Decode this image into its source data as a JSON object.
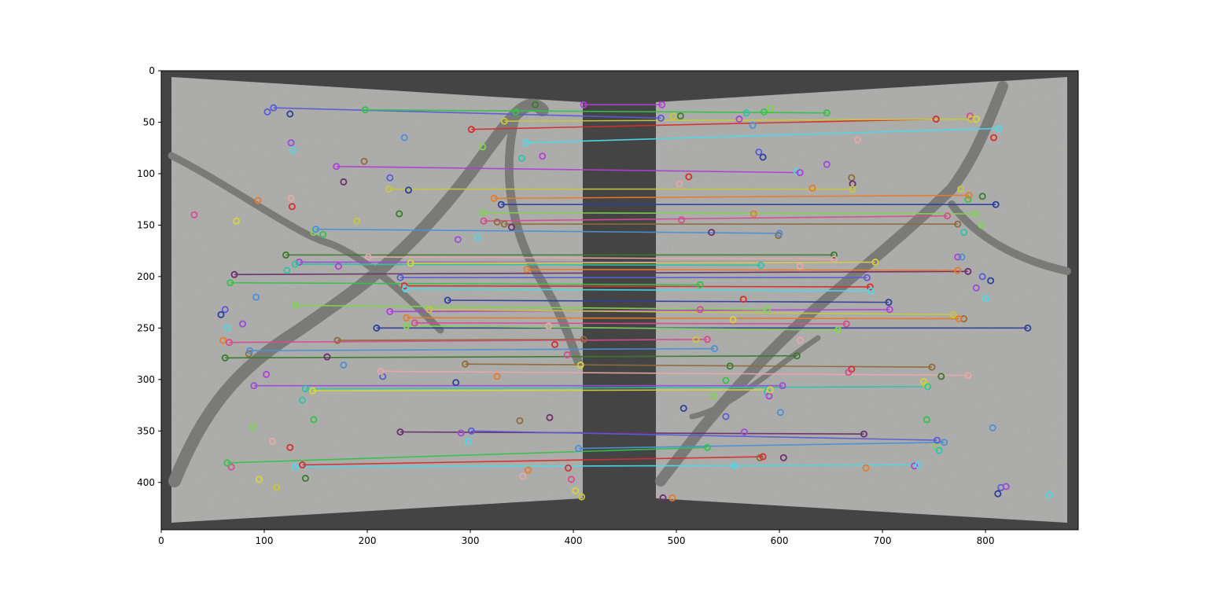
{
  "chart_data": {
    "type": "scatter",
    "title": "",
    "xlabel": "",
    "ylabel": "",
    "xlim": [
      0,
      890
    ],
    "ylim": [
      446,
      0
    ],
    "y_inverted": true,
    "grid": false,
    "xticks": [
      0,
      100,
      200,
      300,
      400,
      500,
      600,
      700,
      800
    ],
    "yticks": [
      0,
      50,
      100,
      150,
      200,
      250,
      300,
      350,
      400
    ],
    "colors": {
      "background": "#444444",
      "image_fill": "#b3b3b1",
      "crack": "#7a7a78"
    },
    "line_colors": [
      "#5b5bd6",
      "#34c34a",
      "#d62e2e",
      "#4dd9e8",
      "#b03fd6",
      "#c8c83a",
      "#e87a2e",
      "#2e3f9a",
      "#7fd64d",
      "#d64d8f",
      "#8f6b3a",
      "#4d8fd6",
      "#3a7a2e",
      "#e8a8a8",
      "#9a4dd6",
      "#2ec3a8",
      "#d6d63a",
      "#6b2e6b"
    ],
    "matches": [
      [
        109,
        36,
        485,
        46
      ],
      [
        198,
        38,
        646,
        41
      ],
      [
        301,
        57,
        752,
        47
      ],
      [
        354,
        70,
        813,
        56
      ],
      [
        170,
        93,
        620,
        99
      ],
      [
        221,
        115,
        671,
        115
      ],
      [
        323,
        124,
        784,
        121
      ],
      [
        330,
        130,
        810,
        130
      ],
      [
        312,
        138,
        790,
        139
      ],
      [
        313,
        146,
        763,
        141
      ],
      [
        333,
        149,
        773,
        149
      ],
      [
        150,
        154,
        600,
        158
      ],
      [
        121,
        179,
        653,
        179
      ],
      [
        201,
        181,
        653,
        183
      ],
      [
        134,
        186,
        693,
        186
      ],
      [
        130,
        188,
        582,
        189
      ],
      [
        242,
        187,
        693,
        186
      ],
      [
        71,
        198,
        783,
        195
      ],
      [
        232,
        201,
        685,
        201
      ],
      [
        67,
        206,
        523,
        208
      ],
      [
        236,
        209,
        688,
        210
      ],
      [
        237,
        212,
        689,
        214
      ],
      [
        222,
        234,
        707,
        232
      ],
      [
        260,
        232,
        769,
        237
      ],
      [
        238,
        240,
        774,
        241
      ],
      [
        209,
        250,
        841,
        250
      ],
      [
        238,
        248,
        657,
        252
      ],
      [
        66,
        264,
        530,
        261
      ],
      [
        171,
        262,
        410,
        261
      ],
      [
        86,
        272,
        537,
        270
      ],
      [
        62,
        279,
        617,
        277
      ],
      [
        213,
        292,
        783,
        296
      ],
      [
        90,
        306,
        603,
        306
      ],
      [
        140,
        309,
        744,
        307
      ],
      [
        147,
        311,
        591,
        310
      ],
      [
        232,
        351,
        682,
        353
      ],
      [
        301,
        350,
        753,
        359
      ],
      [
        64,
        381,
        530,
        366
      ],
      [
        137,
        383,
        584,
        375
      ],
      [
        130,
        385,
        735,
        383
      ],
      [
        410,
        33,
        486,
        33
      ],
      [
        333,
        49,
        786,
        47
      ],
      [
        355,
        193,
        773,
        194
      ],
      [
        278,
        223,
        706,
        225
      ],
      [
        130,
        228,
        588,
        232
      ],
      [
        246,
        245,
        665,
        246
      ],
      [
        295,
        285,
        748,
        288
      ],
      [
        405,
        367,
        760,
        361
      ]
    ],
    "keypoints": [
      [
        103,
        40
      ],
      [
        125,
        42
      ],
      [
        126,
        70
      ],
      [
        128,
        77
      ],
      [
        197,
        88
      ],
      [
        177,
        108
      ],
      [
        94,
        126
      ],
      [
        126,
        124
      ],
      [
        127,
        132
      ],
      [
        32,
        140
      ],
      [
        73,
        146
      ],
      [
        190,
        146
      ],
      [
        231,
        139
      ],
      [
        157,
        159
      ],
      [
        148,
        157
      ],
      [
        122,
        194
      ],
      [
        172,
        190
      ],
      [
        92,
        220
      ],
      [
        62,
        232
      ],
      [
        58,
        237
      ],
      [
        79,
        246
      ],
      [
        64,
        250
      ],
      [
        85,
        275
      ],
      [
        161,
        278
      ],
      [
        60,
        262
      ],
      [
        108,
        360
      ],
      [
        125,
        366
      ],
      [
        68,
        385
      ],
      [
        95,
        397
      ],
      [
        112,
        405
      ],
      [
        140,
        396
      ],
      [
        148,
        339
      ],
      [
        89,
        346
      ],
      [
        137,
        320
      ],
      [
        102,
        295
      ],
      [
        177,
        286
      ],
      [
        215,
        297
      ],
      [
        286,
        303
      ],
      [
        291,
        352
      ],
      [
        298,
        360
      ],
      [
        348,
        340
      ],
      [
        377,
        337
      ],
      [
        356,
        388
      ],
      [
        351,
        394
      ],
      [
        395,
        386
      ],
      [
        398,
        397
      ],
      [
        402,
        408
      ],
      [
        408,
        414
      ],
      [
        363,
        33
      ],
      [
        344,
        40
      ],
      [
        312,
        74
      ],
      [
        350,
        85
      ],
      [
        370,
        83
      ],
      [
        236,
        65
      ],
      [
        222,
        104
      ],
      [
        240,
        116
      ],
      [
        288,
        164
      ],
      [
        307,
        162
      ],
      [
        326,
        147
      ],
      [
        340,
        152
      ],
      [
        326,
        297
      ],
      [
        376,
        248
      ],
      [
        382,
        266
      ],
      [
        394,
        276
      ],
      [
        407,
        286
      ],
      [
        497,
        44
      ],
      [
        504,
        44
      ],
      [
        585,
        40
      ],
      [
        591,
        37
      ],
      [
        568,
        41
      ],
      [
        561,
        47
      ],
      [
        574,
        53
      ],
      [
        580,
        79
      ],
      [
        584,
        84
      ],
      [
        646,
        91
      ],
      [
        617,
        98
      ],
      [
        670,
        104
      ],
      [
        671,
        110
      ],
      [
        632,
        114
      ],
      [
        676,
        67
      ],
      [
        808,
        65
      ],
      [
        785,
        44
      ],
      [
        791,
        47
      ],
      [
        776,
        115
      ],
      [
        797,
        122
      ],
      [
        783,
        125
      ],
      [
        796,
        150
      ],
      [
        779,
        157
      ],
      [
        773,
        181
      ],
      [
        777,
        181
      ],
      [
        797,
        200
      ],
      [
        805,
        204
      ],
      [
        791,
        211
      ],
      [
        800,
        221
      ],
      [
        599,
        160
      ],
      [
        534,
        157
      ],
      [
        575,
        139
      ],
      [
        620,
        190
      ],
      [
        565,
        222
      ],
      [
        523,
        232
      ],
      [
        555,
        242
      ],
      [
        519,
        261
      ],
      [
        552,
        287
      ],
      [
        548,
        301
      ],
      [
        536,
        316
      ],
      [
        588,
        312
      ],
      [
        590,
        316
      ],
      [
        601,
        332
      ],
      [
        548,
        336
      ],
      [
        507,
        328
      ],
      [
        566,
        351
      ],
      [
        556,
        384
      ],
      [
        581,
        376
      ],
      [
        604,
        376
      ],
      [
        684,
        386
      ],
      [
        620,
        262
      ],
      [
        670,
        290
      ],
      [
        667,
        293
      ],
      [
        740,
        302
      ],
      [
        742,
        305
      ],
      [
        757,
        297
      ],
      [
        743,
        339
      ],
      [
        752,
        365
      ],
      [
        755,
        369
      ],
      [
        731,
        384
      ],
      [
        807,
        347
      ],
      [
        815,
        405
      ],
      [
        812,
        411
      ],
      [
        820,
        404
      ],
      [
        862,
        412
      ],
      [
        779,
        241
      ],
      [
        487,
        415
      ],
      [
        496,
        415
      ],
      [
        503,
        110
      ],
      [
        512,
        103
      ],
      [
        505,
        145
      ]
    ]
  }
}
